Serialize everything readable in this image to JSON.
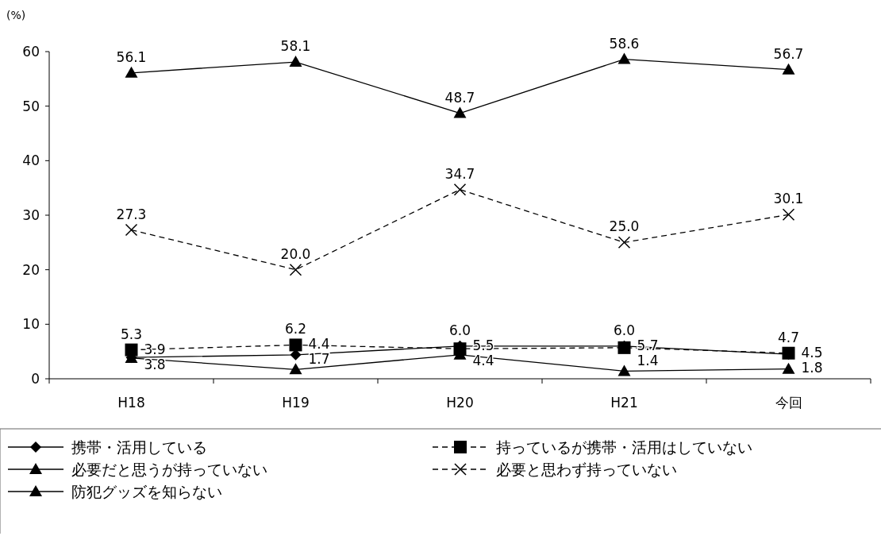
{
  "chart_data": {
    "type": "line",
    "ylabel": "(%)",
    "categories": [
      "H18",
      "H19",
      "H20",
      "H21",
      "今回"
    ],
    "series": [
      {
        "name": "携帯・活用している",
        "color": "#000000",
        "marker": "diamond",
        "line_style": "solid",
        "values": [
          3.9,
          4.4,
          6.0,
          6.0,
          4.5
        ],
        "value_labels": [
          "3.9",
          "4.4",
          "6.0",
          "6.0",
          "4.5"
        ]
      },
      {
        "name": "持っているが携帯・活用はしていない",
        "color": "#000000",
        "marker": "square",
        "line_style": "dashed",
        "values": [
          5.3,
          6.2,
          5.5,
          5.7,
          4.7
        ],
        "value_labels": [
          "5.3",
          "6.2",
          "5.5",
          "5.7",
          "4.7"
        ]
      },
      {
        "name": "必要だと思うが持っていない",
        "color": "#000000",
        "marker": "triangle",
        "line_style": "solid",
        "values": [
          56.1,
          58.1,
          48.7,
          58.6,
          56.7
        ],
        "value_labels": [
          "56.1",
          "58.1",
          "48.7",
          "58.6",
          "56.7"
        ]
      },
      {
        "name": "必要と思わず持っていない",
        "color": "#000000",
        "marker": "cross",
        "line_style": "dashed",
        "values": [
          27.3,
          20.0,
          34.7,
          25.0,
          30.1
        ],
        "value_labels": [
          "27.3",
          "20.0",
          "34.7",
          "25.0",
          "30.1"
        ]
      },
      {
        "name": "防犯グッズを知らない",
        "color": "#000000",
        "marker": "triangle",
        "line_style": "solid",
        "values": [
          3.8,
          1.7,
          4.4,
          1.4,
          1.8
        ],
        "value_labels": [
          "3.8",
          "1.7",
          "4.4",
          "1.4",
          "1.8"
        ]
      }
    ],
    "ylim": [
      0,
      60
    ],
    "yticks": [
      0,
      10,
      20,
      30,
      40,
      50,
      60
    ],
    "grid": false,
    "legend": "bottom"
  }
}
